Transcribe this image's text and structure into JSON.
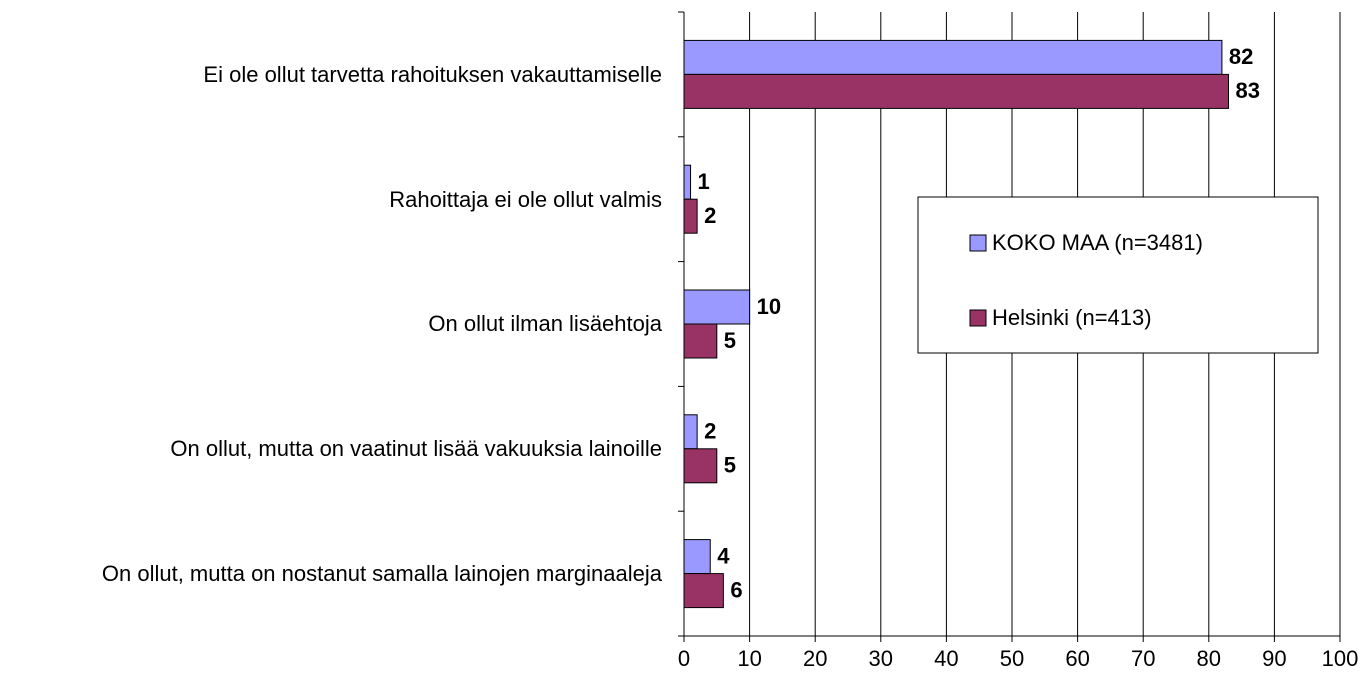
{
  "chart_data": {
    "type": "bar",
    "orientation": "horizontal",
    "categories": [
      "Ei ole ollut tarvetta rahoituksen vakauttamiselle",
      "Rahoittaja ei ole ollut valmis",
      "On ollut ilman lisäehtoja",
      "On ollut, mutta on vaatinut lisää vakuuksia lainoille",
      "On ollut, mutta on nostanut samalla lainojen marginaaleja"
    ],
    "series": [
      {
        "name": "KOKO MAA (n=3481)",
        "color": "#9999ff",
        "values": [
          82,
          1,
          10,
          2,
          4
        ]
      },
      {
        "name": "Helsinki (n=413)",
        "color": "#993366",
        "values": [
          83,
          2,
          5,
          5,
          6
        ]
      }
    ],
    "xlim": [
      0,
      100
    ],
    "xticks": [
      0,
      10,
      20,
      30,
      40,
      50,
      60,
      70,
      80,
      90,
      100
    ],
    "grid": true,
    "legend": "right"
  }
}
